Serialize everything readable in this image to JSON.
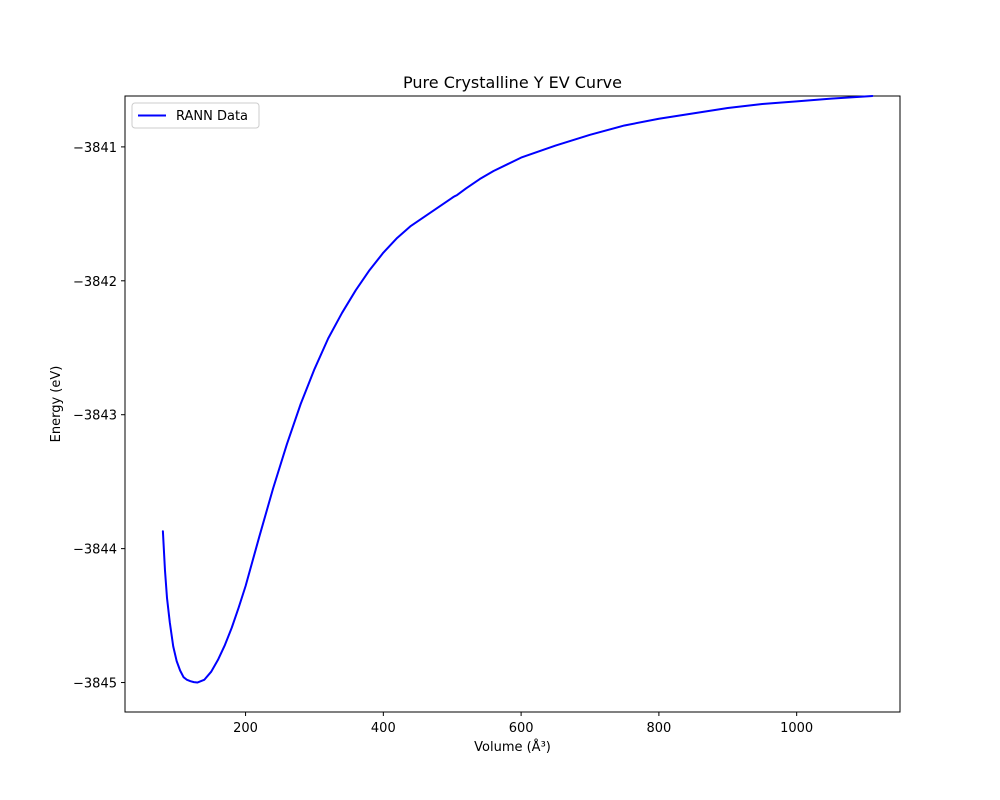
{
  "chart_data": {
    "type": "line",
    "title": "Pure Crystalline Y EV Curve",
    "xlabel": "Volume (Å³)",
    "ylabel": "Energy (eV)",
    "xlim": [
      25,
      1150
    ],
    "ylim": [
      -3845.22,
      -3840.62
    ],
    "xticks": [
      200,
      400,
      600,
      800,
      1000
    ],
    "yticks": [
      -3845,
      -3844,
      -3843,
      -3842,
      -3841
    ],
    "xtick_labels": [
      "200",
      "400",
      "600",
      "800",
      "1000"
    ],
    "ytick_labels": [
      "−3845",
      "−3844",
      "−3843",
      "−3842",
      "−3841"
    ],
    "grid": false,
    "legend_position": "top-left",
    "series": [
      {
        "name": "RANN Data",
        "color": "#0000ff",
        "x": [
          80,
          83,
          86,
          90,
          95,
          100,
          105,
          110,
          115,
          120,
          125,
          130,
          135,
          140,
          150,
          160,
          170,
          180,
          190,
          200,
          220,
          240,
          260,
          280,
          300,
          320,
          340,
          360,
          380,
          400,
          420,
          440,
          460,
          480,
          500,
          503,
          507,
          520,
          540,
          560,
          580,
          600,
          650,
          700,
          750,
          800,
          850,
          900,
          950,
          1000,
          1050,
          1110
        ],
        "y": [
          -3843.87,
          -3844.16,
          -3844.37,
          -3844.55,
          -3844.73,
          -3844.84,
          -3844.91,
          -3844.96,
          -3844.98,
          -3844.99,
          -3844.997,
          -3845.0,
          -3844.99,
          -3844.98,
          -3844.92,
          -3844.83,
          -3844.72,
          -3844.59,
          -3844.44,
          -3844.28,
          -3843.91,
          -3843.55,
          -3843.22,
          -3842.92,
          -3842.66,
          -3842.43,
          -3842.24,
          -3842.07,
          -3841.92,
          -3841.79,
          -3841.68,
          -3841.59,
          -3841.52,
          -3841.45,
          -3841.38,
          -3841.37,
          -3841.36,
          -3841.31,
          -3841.24,
          -3841.18,
          -3841.13,
          -3841.08,
          -3840.99,
          -3840.91,
          -3840.84,
          -3840.79,
          -3840.75,
          -3840.71,
          -3840.68,
          -3840.66,
          -3840.64,
          -3840.62
        ]
      }
    ]
  }
}
